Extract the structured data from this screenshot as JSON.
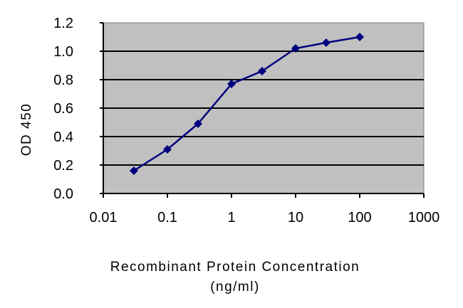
{
  "chart_data": {
    "type": "line",
    "title": "",
    "xlabel": "Recombinant Protein Concentration",
    "xlabel_unit": "(ng/ml)",
    "ylabel": "OD 450",
    "x_scale": "log",
    "xlim": [
      0.01,
      1000
    ],
    "ylim": [
      0.0,
      1.2
    ],
    "x_ticks": [
      0.01,
      0.1,
      1,
      10,
      100,
      1000
    ],
    "x_tick_labels": [
      "0.01",
      "0.1",
      "1",
      "10",
      "100",
      "1000"
    ],
    "y_ticks": [
      0.0,
      0.2,
      0.4,
      0.6,
      0.8,
      1.0,
      1.2
    ],
    "y_tick_labels": [
      "0.0",
      "0.2",
      "0.4",
      "0.6",
      "0.8",
      "1.0",
      "1.2"
    ],
    "grid": "horizontal",
    "legend": "none",
    "series": [
      {
        "x": [
          0.03,
          0.1,
          0.3,
          1,
          3,
          10,
          30,
          100
        ],
        "y": [
          0.16,
          0.31,
          0.49,
          0.77,
          0.86,
          1.02,
          1.06,
          1.1
        ],
        "color": "#00007f"
      }
    ],
    "colors": {
      "plot_background": "#c0c0c0",
      "gridline": "#000000",
      "series_line": "#00007f"
    }
  }
}
